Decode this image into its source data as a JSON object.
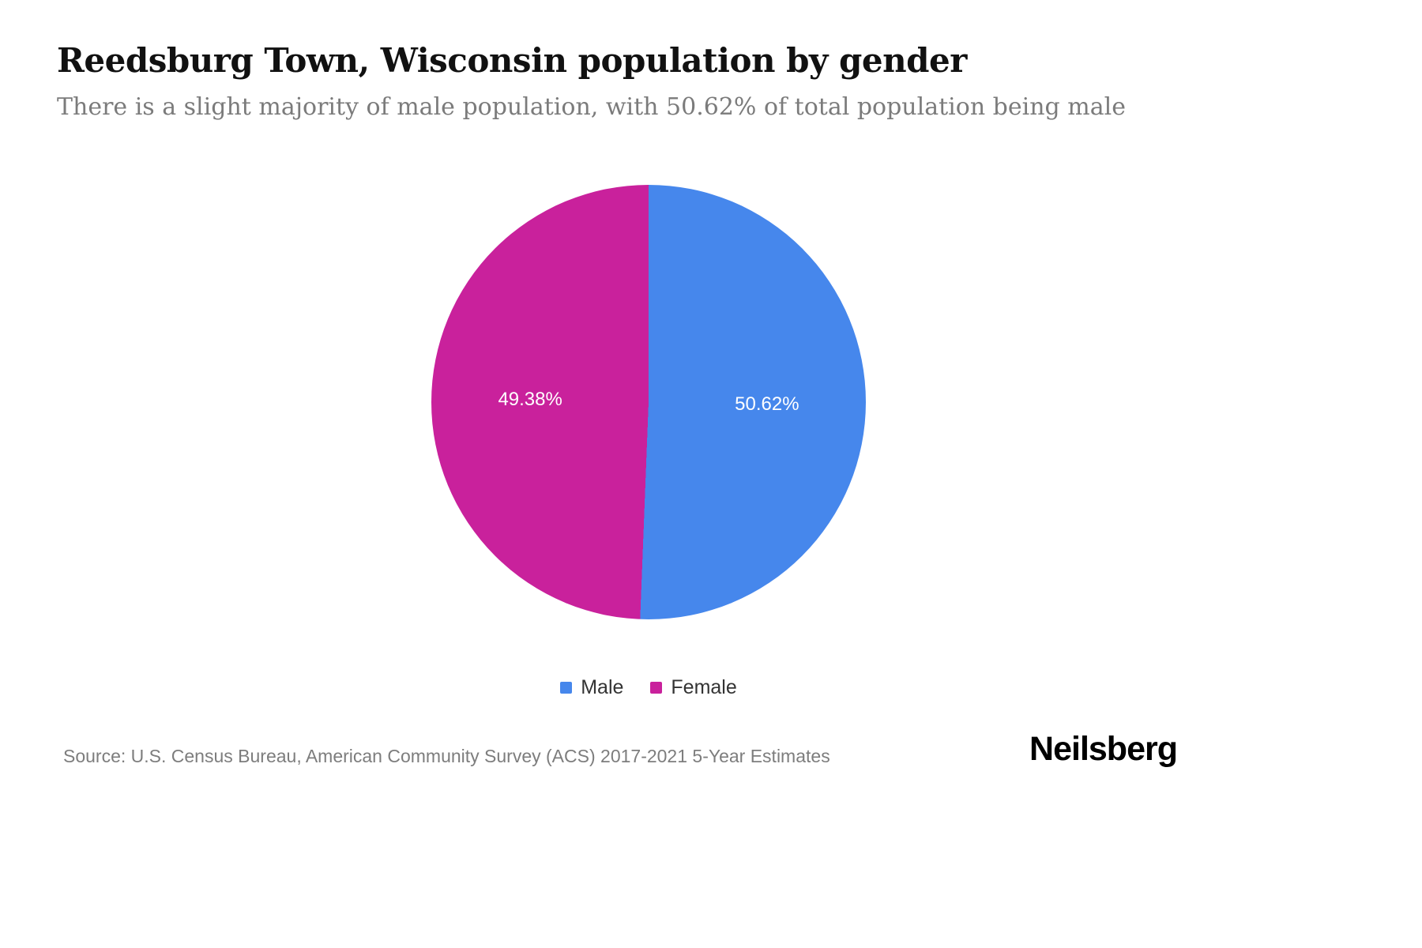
{
  "header": {
    "title": "Reedsburg Town, Wisconsin population by gender",
    "subtitle": "There is a slight majority of male population, with 50.62% of total population being male"
  },
  "chart_data": {
    "type": "pie",
    "title": "Reedsburg Town, Wisconsin population by gender",
    "slices": [
      {
        "label": "Male",
        "value": 50.62,
        "display": "50.62%",
        "color": "#4687ec"
      },
      {
        "label": "Female",
        "value": 49.38,
        "display": "49.38%",
        "color": "#c9219c"
      }
    ],
    "start_angle_deg": 0,
    "direction": "clockwise",
    "legend_position": "bottom",
    "label_color": "#ffffff",
    "background": "#ffffff"
  },
  "footer": {
    "source": "Source: U.S. Census Bureau, American Community Survey (ACS) 2017-2021 5-Year Estimates",
    "brand": "Neilsberg"
  }
}
